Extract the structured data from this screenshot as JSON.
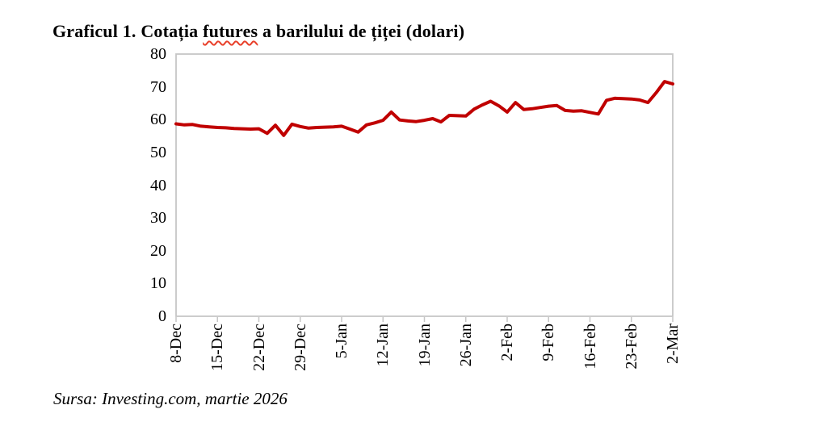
{
  "document": {
    "title": {
      "prefix": "Graficul 1. Cotația ",
      "spellchecked_word": "futures",
      "suffix": " a barilului de țiței (dolari)"
    },
    "source_note": "Sursa: Investing.com, martie 2026"
  },
  "colors": {
    "line": "#c00000",
    "spellcheck_underline": "#e8402a",
    "axis": "#c6c6c6",
    "text": "#000000",
    "background": "#ffffff"
  },
  "chart_data": {
    "type": "line",
    "title": "Graficul 1. Cotația futures a barilului de țiței (dolari)",
    "xlabel": "",
    "ylabel": "",
    "ylim": [
      0,
      80
    ],
    "yticks": [
      0,
      10,
      20,
      30,
      40,
      50,
      60,
      70,
      80
    ],
    "grid": false,
    "legend_position": "none",
    "xtick_labels": [
      "8-Dec",
      "15-Dec",
      "22-Dec",
      "29-Dec",
      "5-Jan",
      "12-Jan",
      "19-Jan",
      "26-Jan",
      "2-Feb",
      "9-Feb",
      "16-Feb",
      "23-Feb",
      "2-Mar"
    ],
    "xtick_indices": [
      0,
      5,
      10,
      15,
      20,
      25,
      30,
      35,
      40,
      45,
      50,
      55,
      60
    ],
    "series": [
      {
        "name": "Cotația futures a barilului de țiței (dolari)",
        "color": "#c00000",
        "x": [
          "8-Dec",
          "9-Dec",
          "10-Dec",
          "11-Dec",
          "12-Dec",
          "15-Dec",
          "16-Dec",
          "17-Dec",
          "18-Dec",
          "19-Dec",
          "22-Dec",
          "23-Dec",
          "24-Dec",
          "25-Dec",
          "26-Dec",
          "29-Dec",
          "30-Dec",
          "31-Dec",
          "1-Jan",
          "2-Jan",
          "5-Jan",
          "6-Jan",
          "7-Jan",
          "8-Jan",
          "9-Jan",
          "12-Jan",
          "13-Jan",
          "14-Jan",
          "15-Jan",
          "16-Jan",
          "19-Jan",
          "20-Jan",
          "21-Jan",
          "22-Jan",
          "23-Jan",
          "26-Jan",
          "27-Jan",
          "28-Jan",
          "29-Jan",
          "30-Jan",
          "2-Feb",
          "3-Feb",
          "4-Feb",
          "5-Feb",
          "6-Feb",
          "9-Feb",
          "10-Feb",
          "11-Feb",
          "12-Feb",
          "13-Feb",
          "16-Feb",
          "17-Feb",
          "18-Feb",
          "19-Feb",
          "20-Feb",
          "23-Feb",
          "24-Feb",
          "25-Feb",
          "26-Feb",
          "27-Feb",
          "2-Mar"
        ],
        "values": [
          58.7,
          58.4,
          58.5,
          58.0,
          57.8,
          57.6,
          57.5,
          57.3,
          57.2,
          57.1,
          57.2,
          55.8,
          58.3,
          55.2,
          58.6,
          57.9,
          57.4,
          57.6,
          57.7,
          57.8,
          58.0,
          57.1,
          56.2,
          58.4,
          59.0,
          59.8,
          62.3,
          59.9,
          59.6,
          59.4,
          59.8,
          60.3,
          59.3,
          61.3,
          61.2,
          61.1,
          63.2,
          64.5,
          65.6,
          64.2,
          62.3,
          65.2,
          63.1,
          63.3,
          63.7,
          64.1,
          64.3,
          62.8,
          62.6,
          62.7,
          62.2,
          61.7,
          65.9,
          66.5,
          66.4,
          66.3,
          66.0,
          65.2,
          68.2,
          71.6,
          70.9
        ]
      }
    ]
  }
}
